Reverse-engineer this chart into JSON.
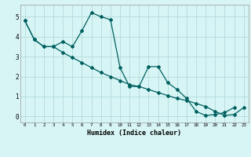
{
  "xlabel": "Humidex (Indice chaleur)",
  "bg_color": "#d8f5f5",
  "grid_color": "#b8dede",
  "line_color": "#006060",
  "xlim": [
    -0.5,
    23.5
  ],
  "ylim": [
    -0.3,
    5.6
  ],
  "xticks": [
    0,
    1,
    2,
    3,
    4,
    5,
    6,
    7,
    8,
    9,
    10,
    11,
    12,
    13,
    14,
    15,
    16,
    17,
    18,
    19,
    20,
    21,
    22,
    23
  ],
  "yticks": [
    0,
    1,
    2,
    3,
    4,
    5
  ],
  "line1_x": [
    0,
    1,
    2,
    3,
    4,
    5,
    6,
    7,
    8,
    9,
    10,
    11,
    12,
    13,
    14,
    15,
    16,
    17,
    18,
    19,
    20,
    21,
    22
  ],
  "line1_y": [
    4.8,
    3.85,
    3.5,
    3.5,
    3.75,
    3.5,
    4.3,
    5.2,
    5.0,
    4.85,
    2.45,
    1.5,
    1.5,
    2.5,
    2.5,
    1.7,
    1.35,
    0.9,
    0.25,
    0.05,
    0.1,
    0.2,
    0.45
  ],
  "line2_x": [
    0,
    1,
    2,
    3,
    4,
    5,
    6,
    7,
    8,
    9,
    10,
    11,
    12,
    13,
    14,
    15,
    16,
    17,
    18,
    19,
    20,
    21,
    22,
    23
  ],
  "line2_y": [
    4.8,
    3.85,
    3.5,
    3.5,
    3.2,
    2.95,
    2.7,
    2.45,
    2.2,
    2.0,
    1.8,
    1.6,
    1.5,
    1.35,
    1.2,
    1.05,
    0.9,
    0.8,
    0.65,
    0.5,
    0.25,
    0.05,
    0.1,
    0.45
  ]
}
